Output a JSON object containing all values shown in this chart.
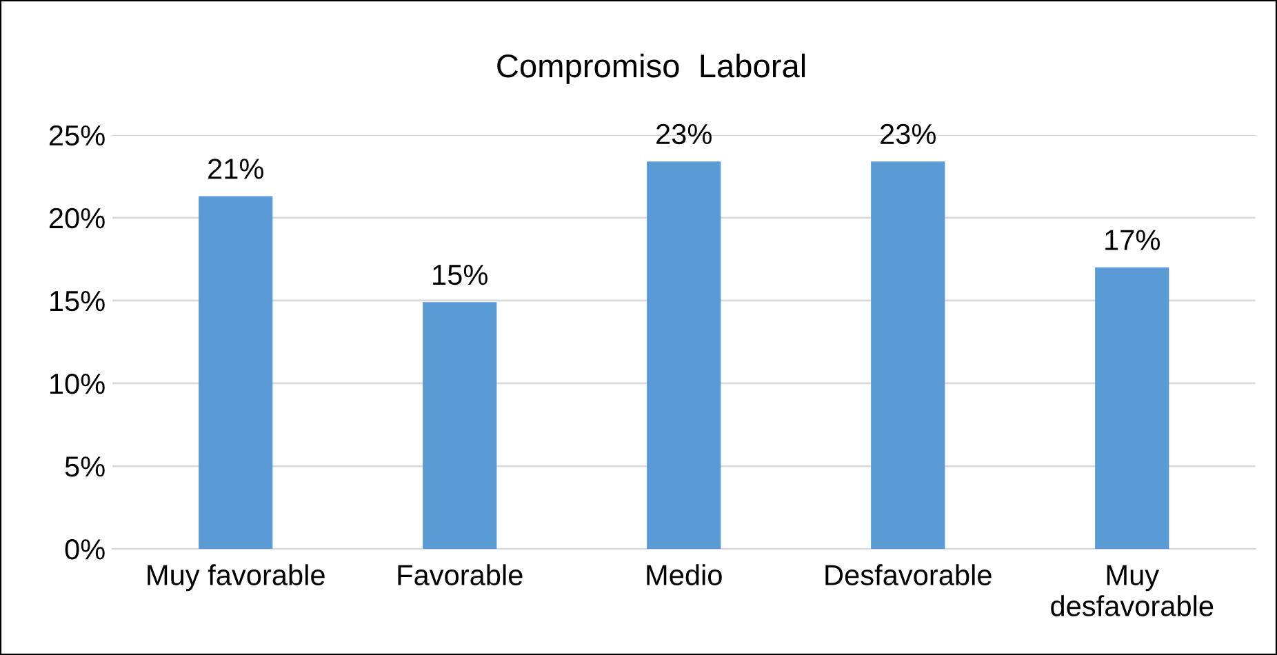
{
  "chart_data": {
    "type": "bar",
    "title": "Compromiso  Laboral",
    "categories": [
      "Muy favorable",
      "Favorable",
      "Medio",
      "Desfavorable",
      "Muy\ndesfavorable"
    ],
    "values": [
      21.3,
      14.9,
      23.4,
      23.4,
      17.0
    ],
    "value_labels": [
      "21%",
      "15%",
      "23%",
      "23%",
      "17%"
    ],
    "color": "#5b9bd5",
    "ylim": [
      0,
      25
    ],
    "yticks": [
      {
        "value": 0,
        "label": "0%"
      },
      {
        "value": 5,
        "label": "5%"
      },
      {
        "value": 10,
        "label": "10%"
      },
      {
        "value": 15,
        "label": "15%"
      },
      {
        "value": 20,
        "label": "20%"
      },
      {
        "value": 25,
        "label": "25%"
      }
    ],
    "grid": "y",
    "legend": false
  }
}
